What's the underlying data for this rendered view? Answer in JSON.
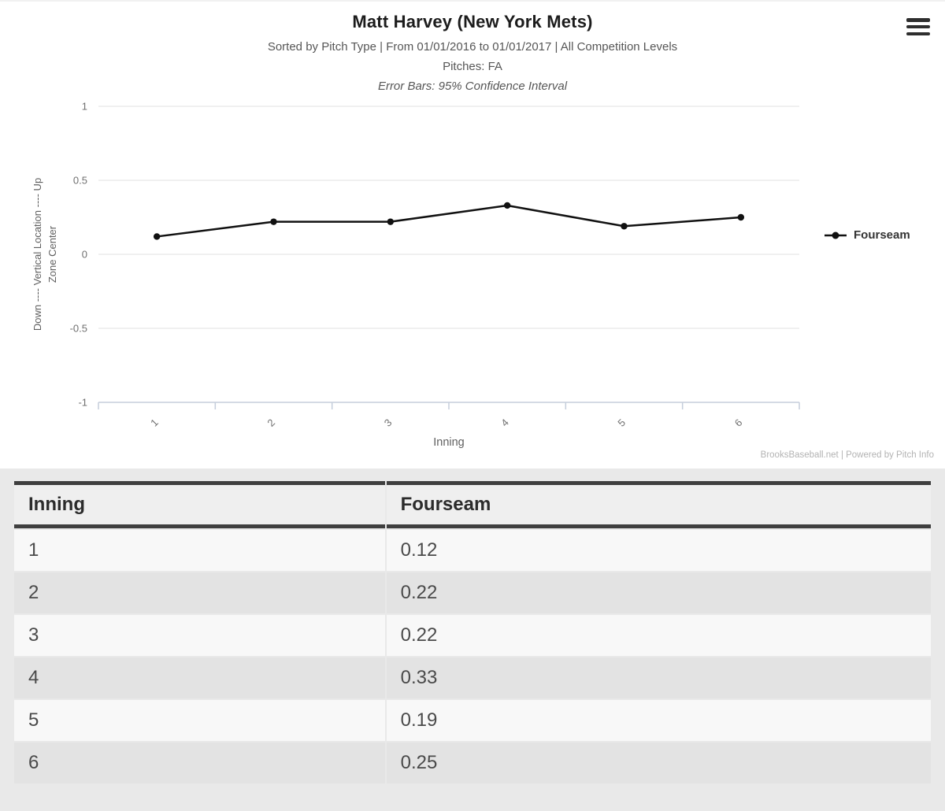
{
  "header": {
    "title": "Matt Harvey (New York Mets)",
    "subtitle_line1": "Sorted by Pitch Type | From 01/01/2016 to 01/01/2017 | All Competition Levels",
    "subtitle_line2": "Pitches: FA",
    "subtitle_line3": "Error Bars: 95% Confidence Interval",
    "menu_icon": "hamburger-icon"
  },
  "chart_data": {
    "type": "line",
    "title": "Matt Harvey (New York Mets)",
    "categories": [
      "1",
      "2",
      "3",
      "4",
      "5",
      "6"
    ],
    "series": [
      {
        "name": "Fourseam",
        "values": [
          0.12,
          0.22,
          0.22,
          0.33,
          0.19,
          0.25
        ]
      }
    ],
    "xlabel": "Inning",
    "ylabel_line1": "Down ---- Vertical Location ---- Up",
    "ylabel_line2": "Zone Center",
    "ylim": [
      -1,
      1
    ],
    "yticks": [
      1,
      0.5,
      0,
      -0.5,
      -1
    ],
    "grid": true,
    "legend_position": "right"
  },
  "legend": {
    "series_label": "Fourseam",
    "marker": "line-dot-icon"
  },
  "footer": {
    "credit": "BrooksBaseball.net | Powered by Pitch Info"
  },
  "table": {
    "columns": [
      "Inning",
      "Fourseam"
    ],
    "rows": [
      [
        "1",
        "0.12"
      ],
      [
        "2",
        "0.22"
      ],
      [
        "3",
        "0.22"
      ],
      [
        "4",
        "0.33"
      ],
      [
        "5",
        "0.19"
      ],
      [
        "6",
        "0.25"
      ]
    ]
  },
  "colors": {
    "series_line": "#111111",
    "gridline": "#e2e2e2",
    "x_axis": "#c5cedb",
    "tick_label": "#707070",
    "axis_title": "#5f5f5f",
    "header_border": "#3f3f3f",
    "section_bg": "#e9e9e9"
  }
}
